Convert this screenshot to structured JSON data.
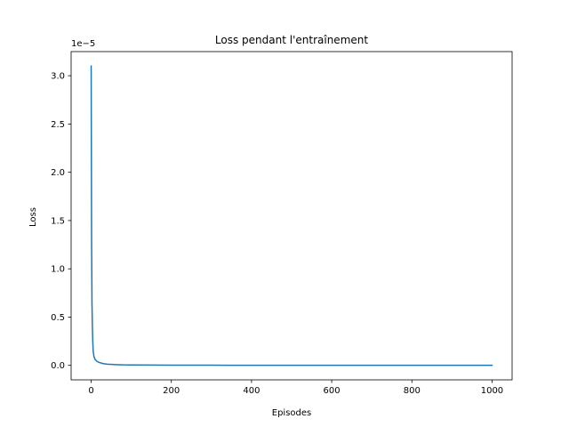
{
  "chart_data": {
    "type": "line",
    "title": "Loss pendant l'entraînement",
    "xlabel": "Episodes",
    "ylabel": "Loss",
    "y_offset_label": "1e−5",
    "xlim": [
      -50,
      1050
    ],
    "ylim": [
      -0.15,
      3.25
    ],
    "xticks": [
      0,
      200,
      400,
      600,
      800,
      1000
    ],
    "xtick_labels": [
      "0",
      "200",
      "400",
      "600",
      "800",
      "1000"
    ],
    "yticks": [
      0.0,
      0.5,
      1.0,
      1.5,
      2.0,
      2.5,
      3.0
    ],
    "ytick_labels": [
      "0.0",
      "0.5",
      "1.0",
      "1.5",
      "2.0",
      "2.5",
      "3.0"
    ],
    "grid": false,
    "series": [
      {
        "color": "#1f77b4",
        "x": [
          0,
          1,
          2,
          3,
          4,
          5,
          7,
          10,
          15,
          20,
          30,
          40,
          60,
          80,
          100,
          150,
          200,
          300,
          400,
          500,
          600,
          700,
          800,
          900,
          1000
        ],
        "y": [
          3.1,
          1.3,
          0.65,
          0.4,
          0.25,
          0.15,
          0.09,
          0.06,
          0.04,
          0.03,
          0.018,
          0.012,
          0.008,
          0.005,
          0.004,
          0.003,
          0.002,
          0.0015,
          0.001,
          0.001,
          0.0008,
          0.0007,
          0.0006,
          0.0005,
          0.0005
        ]
      }
    ]
  }
}
